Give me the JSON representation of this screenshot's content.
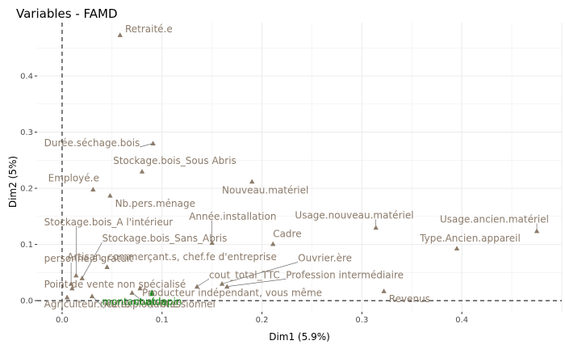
{
  "chart_data": {
    "type": "scatter",
    "title": "Variables - FAMD",
    "xlabel": "Dim1 (5.9%)",
    "ylabel": "Dim2 (5%)",
    "xlim": [
      -0.025,
      0.5
    ],
    "ylim": [
      -0.02,
      0.495
    ],
    "xticks": [
      0.0,
      0.1,
      0.2,
      0.3,
      0.4
    ],
    "yticks": [
      0.0,
      0.1,
      0.2,
      0.3,
      0.4
    ],
    "tick_labels_x": [
      "0.0",
      "0.1",
      "0.2",
      "0.3",
      "0.4"
    ],
    "tick_labels_y": [
      "0.0",
      "0.1",
      "0.2",
      "0.3",
      "0.4"
    ],
    "grid": true,
    "reference_lines": {
      "x": 0,
      "y": 0,
      "style": "dashed"
    },
    "colors": {
      "qualitative": "#8c7b6b",
      "quantitative": "#1a8a1a",
      "grid": "#ebebeb"
    },
    "points": [
      {
        "label": "Retraité.e",
        "x": 0.058,
        "y": 0.473,
        "lx": 0.063,
        "ly": 0.478,
        "kind": "qualitative"
      },
      {
        "label": "Durée.séchage.bois",
        "x": 0.091,
        "y": 0.28,
        "lx": -0.018,
        "ly": 0.275,
        "kind": "qualitative"
      },
      {
        "label": "Stockage.bois_Sous Abris",
        "x": 0.08,
        "y": 0.23,
        "lx": 0.051,
        "ly": 0.243,
        "kind": "qualitative"
      },
      {
        "label": "Employé.e",
        "x": 0.031,
        "y": 0.198,
        "lx": -0.014,
        "ly": 0.212,
        "kind": "qualitative"
      },
      {
        "label": "Nb.pers.ménage",
        "x": 0.048,
        "y": 0.187,
        "lx": 0.053,
        "ly": 0.167,
        "kind": "qualitative"
      },
      {
        "label": "Nouveau.matériel",
        "x": 0.19,
        "y": 0.212,
        "lx": 0.16,
        "ly": 0.191,
        "kind": "qualitative"
      },
      {
        "label": "Année.installation",
        "x": 0.15,
        "y": 0.103,
        "lx": 0.127,
        "ly": 0.144,
        "kind": "qualitative"
      },
      {
        "label": "Usage.nouveau.matériel",
        "x": 0.314,
        "y": 0.13,
        "lx": 0.233,
        "ly": 0.146,
        "kind": "qualitative"
      },
      {
        "label": "Usage.ancien.matériel",
        "x": 0.475,
        "y": 0.124,
        "lx": 0.378,
        "ly": 0.139,
        "kind": "qualitative"
      },
      {
        "label": "Type.Ancien.appareil",
        "x": 0.395,
        "y": 0.093,
        "lx": 0.358,
        "ly": 0.105,
        "kind": "qualitative"
      },
      {
        "label": "Stockage.bois_A l'intérieur",
        "x": 0.014,
        "y": 0.045,
        "lx": -0.018,
        "ly": 0.134,
        "kind": "qualitative"
      },
      {
        "label": "Stockage.bois_Sans_Abris",
        "x": 0.02,
        "y": 0.04,
        "lx": 0.04,
        "ly": 0.105,
        "kind": "qualitative"
      },
      {
        "label": "Cadre",
        "x": 0.211,
        "y": 0.101,
        "lx": 0.211,
        "ly": 0.113,
        "kind": "qualitative"
      },
      {
        "label": "personne.s gratuit",
        "x": 0.009,
        "y": 0.03,
        "lx": -0.018,
        "ly": 0.069,
        "kind": "qualitative"
      },
      {
        "label": "Artisan, commerçant.s, chef.fe d'entreprise",
        "x": 0.045,
        "y": 0.06,
        "lx": 0.005,
        "ly": 0.072,
        "kind": "qualitative"
      },
      {
        "label": "Ouvrier.ère",
        "x": 0.16,
        "y": 0.03,
        "lx": 0.236,
        "ly": 0.07,
        "kind": "qualitative"
      },
      {
        "label": "cout_total_TTC",
        "x": 0.135,
        "y": 0.025,
        "lx": 0.147,
        "ly": 0.04,
        "kind": "qualitative"
      },
      {
        "label": "Profession intermédiaire",
        "x": 0.165,
        "y": 0.025,
        "lx": 0.224,
        "ly": 0.04,
        "kind": "qualitative"
      },
      {
        "label": "Point de vente non spécialisé",
        "x": 0.01,
        "y": 0.022,
        "lx": -0.018,
        "ly": 0.023,
        "kind": "qualitative"
      },
      {
        "label": "Producteur indépendant, vous même",
        "x": 0.078,
        "y": 0.022,
        "lx": 0.08,
        "ly": 0.008,
        "kind": "qualitative"
      },
      {
        "label": "Revenus",
        "x": 0.322,
        "y": 0.017,
        "lx": 0.327,
        "ly": -0.003,
        "kind": "qualitative"
      },
      {
        "label": "Agriculteur.rice exploitant.e",
        "x": 0.005,
        "y": 0.006,
        "lx": -0.018,
        "ly": -0.012,
        "kind": "qualitative"
      },
      {
        "label": "Professionnel",
        "x": 0.07,
        "y": 0.014,
        "lx": 0.089,
        "ly": -0.012,
        "kind": "qualitative"
      },
      {
        "label": "Autre",
        "x": 0.03,
        "y": 0.008,
        "lx": 0.042,
        "ly": -0.012,
        "kind": "qualitative"
      },
      {
        "label": "montant.aide",
        "x": 0.09,
        "y": 0.015,
        "lx": 0.04,
        "ly": -0.008,
        "kind": "quantitative"
      },
      {
        "label": "cout.lapin",
        "x": 0.09,
        "y": 0.012,
        "lx": 0.072,
        "ly": -0.008,
        "kind": "quantitative"
      }
    ]
  }
}
